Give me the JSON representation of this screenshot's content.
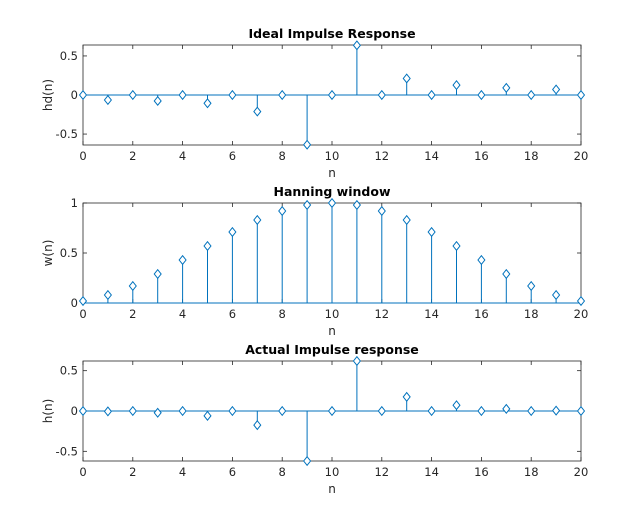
{
  "figure": {
    "background": "#ffffff",
    "stem_color": "#0072bd",
    "axis_color": "#262626"
  },
  "chart_data": [
    {
      "type": "stem",
      "title": "Ideal Impulse Response",
      "xlabel": "n",
      "ylabel": "hd(n)",
      "xlim": [
        0,
        20
      ],
      "ylim": [
        -0.64,
        0.64
      ],
      "xticks": [
        0,
        2,
        4,
        6,
        8,
        10,
        12,
        14,
        16,
        18,
        20
      ],
      "yticks": [
        -0.5,
        0,
        0.5
      ],
      "ytick_labels": [
        "-0.5",
        "0",
        "0.5"
      ],
      "marker": "diamond",
      "x": [
        0,
        1,
        2,
        3,
        4,
        5,
        6,
        7,
        8,
        9,
        10,
        11,
        12,
        13,
        14,
        15,
        16,
        17,
        18,
        19,
        20
      ],
      "y": [
        0,
        -0.064,
        0,
        -0.076,
        0,
        -0.106,
        0,
        -0.212,
        0,
        -0.636,
        0,
        0.636,
        0,
        0.212,
        0,
        0.127,
        0,
        0.091,
        0,
        0.071,
        0
      ]
    },
    {
      "type": "stem",
      "title": "Hanning window",
      "xlabel": "n",
      "ylabel": "w(n)",
      "xlim": [
        0,
        20
      ],
      "ylim": [
        0,
        1
      ],
      "xticks": [
        0,
        2,
        4,
        6,
        8,
        10,
        12,
        14,
        16,
        18,
        20
      ],
      "yticks": [
        0,
        0.5,
        1
      ],
      "ytick_labels": [
        "0",
        "0.5",
        "1"
      ],
      "marker": "diamond",
      "x": [
        0,
        1,
        2,
        3,
        4,
        5,
        6,
        7,
        8,
        9,
        10,
        11,
        12,
        13,
        14,
        15,
        16,
        17,
        18,
        19,
        20
      ],
      "y": [
        0.02,
        0.08,
        0.17,
        0.29,
        0.43,
        0.57,
        0.71,
        0.83,
        0.92,
        0.98,
        1.0,
        0.98,
        0.92,
        0.83,
        0.71,
        0.57,
        0.43,
        0.29,
        0.17,
        0.08,
        0.02
      ]
    },
    {
      "type": "stem",
      "title": "Actual Impulse response",
      "xlabel": "n",
      "ylabel": "h(n)",
      "xlim": [
        0,
        20
      ],
      "ylim": [
        -0.62,
        0.62
      ],
      "xticks": [
        0,
        2,
        4,
        6,
        8,
        10,
        12,
        14,
        16,
        18,
        20
      ],
      "yticks": [
        -0.5,
        0,
        0.5
      ],
      "ytick_labels": [
        "-0.5",
        "0",
        "0.5"
      ],
      "marker": "diamond",
      "x": [
        0,
        1,
        2,
        3,
        4,
        5,
        6,
        7,
        8,
        9,
        10,
        11,
        12,
        13,
        14,
        15,
        16,
        17,
        18,
        19,
        20
      ],
      "y": [
        0,
        -0.005,
        0,
        -0.022,
        0,
        -0.06,
        0,
        -0.175,
        0,
        -0.62,
        0,
        0.62,
        0,
        0.175,
        0,
        0.072,
        0,
        0.026,
        0,
        0.005,
        0
      ]
    }
  ]
}
